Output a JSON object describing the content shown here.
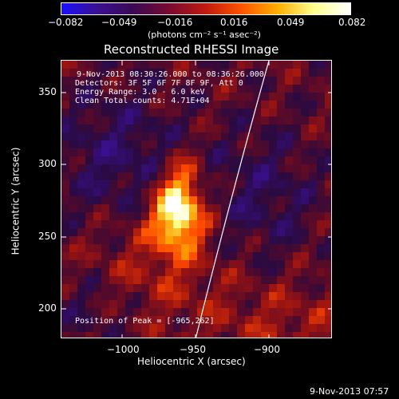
{
  "colorbar": {
    "ticks": [
      "−0.082",
      "−0.049",
      "−0.016",
      "0.016",
      "0.049",
      "0.082"
    ],
    "unit": "(photons cm⁻² s⁻¹ asec⁻²)",
    "colors": [
      "#1a10ff",
      "#3a1090",
      "#3a0a55",
      "#7a0a30",
      "#c01a10",
      "#ff5500",
      "#ffb000",
      "#ffff90",
      "#ffffff"
    ]
  },
  "plot": {
    "title": "Reconstructed RHESSI Image",
    "xlabel": "Heliocentric X (arcsec)",
    "ylabel": "Heliocentric Y (arcsec)",
    "xticks": [
      "−1000",
      "−950",
      "−900"
    ],
    "yticks": [
      "350",
      "300",
      "250",
      "200"
    ],
    "xlim": [
      -1045,
      -872
    ],
    "ylim": [
      177,
      372
    ]
  },
  "annotations": {
    "time_range": "9-Nov-2013 08:30:26.000 to 08:36:26.000",
    "detectors": "Detectors: 3F 5F 6F 7F 8F 9F, Att 0",
    "energy": "Energy Range: 3.0 - 6.0 keV",
    "clean": "Clean    Total counts: 4.71E+04",
    "peak": "Position of Peak = [-965,262]"
  },
  "footer": {
    "timestamp": "9-Nov-2013 07:57"
  }
}
